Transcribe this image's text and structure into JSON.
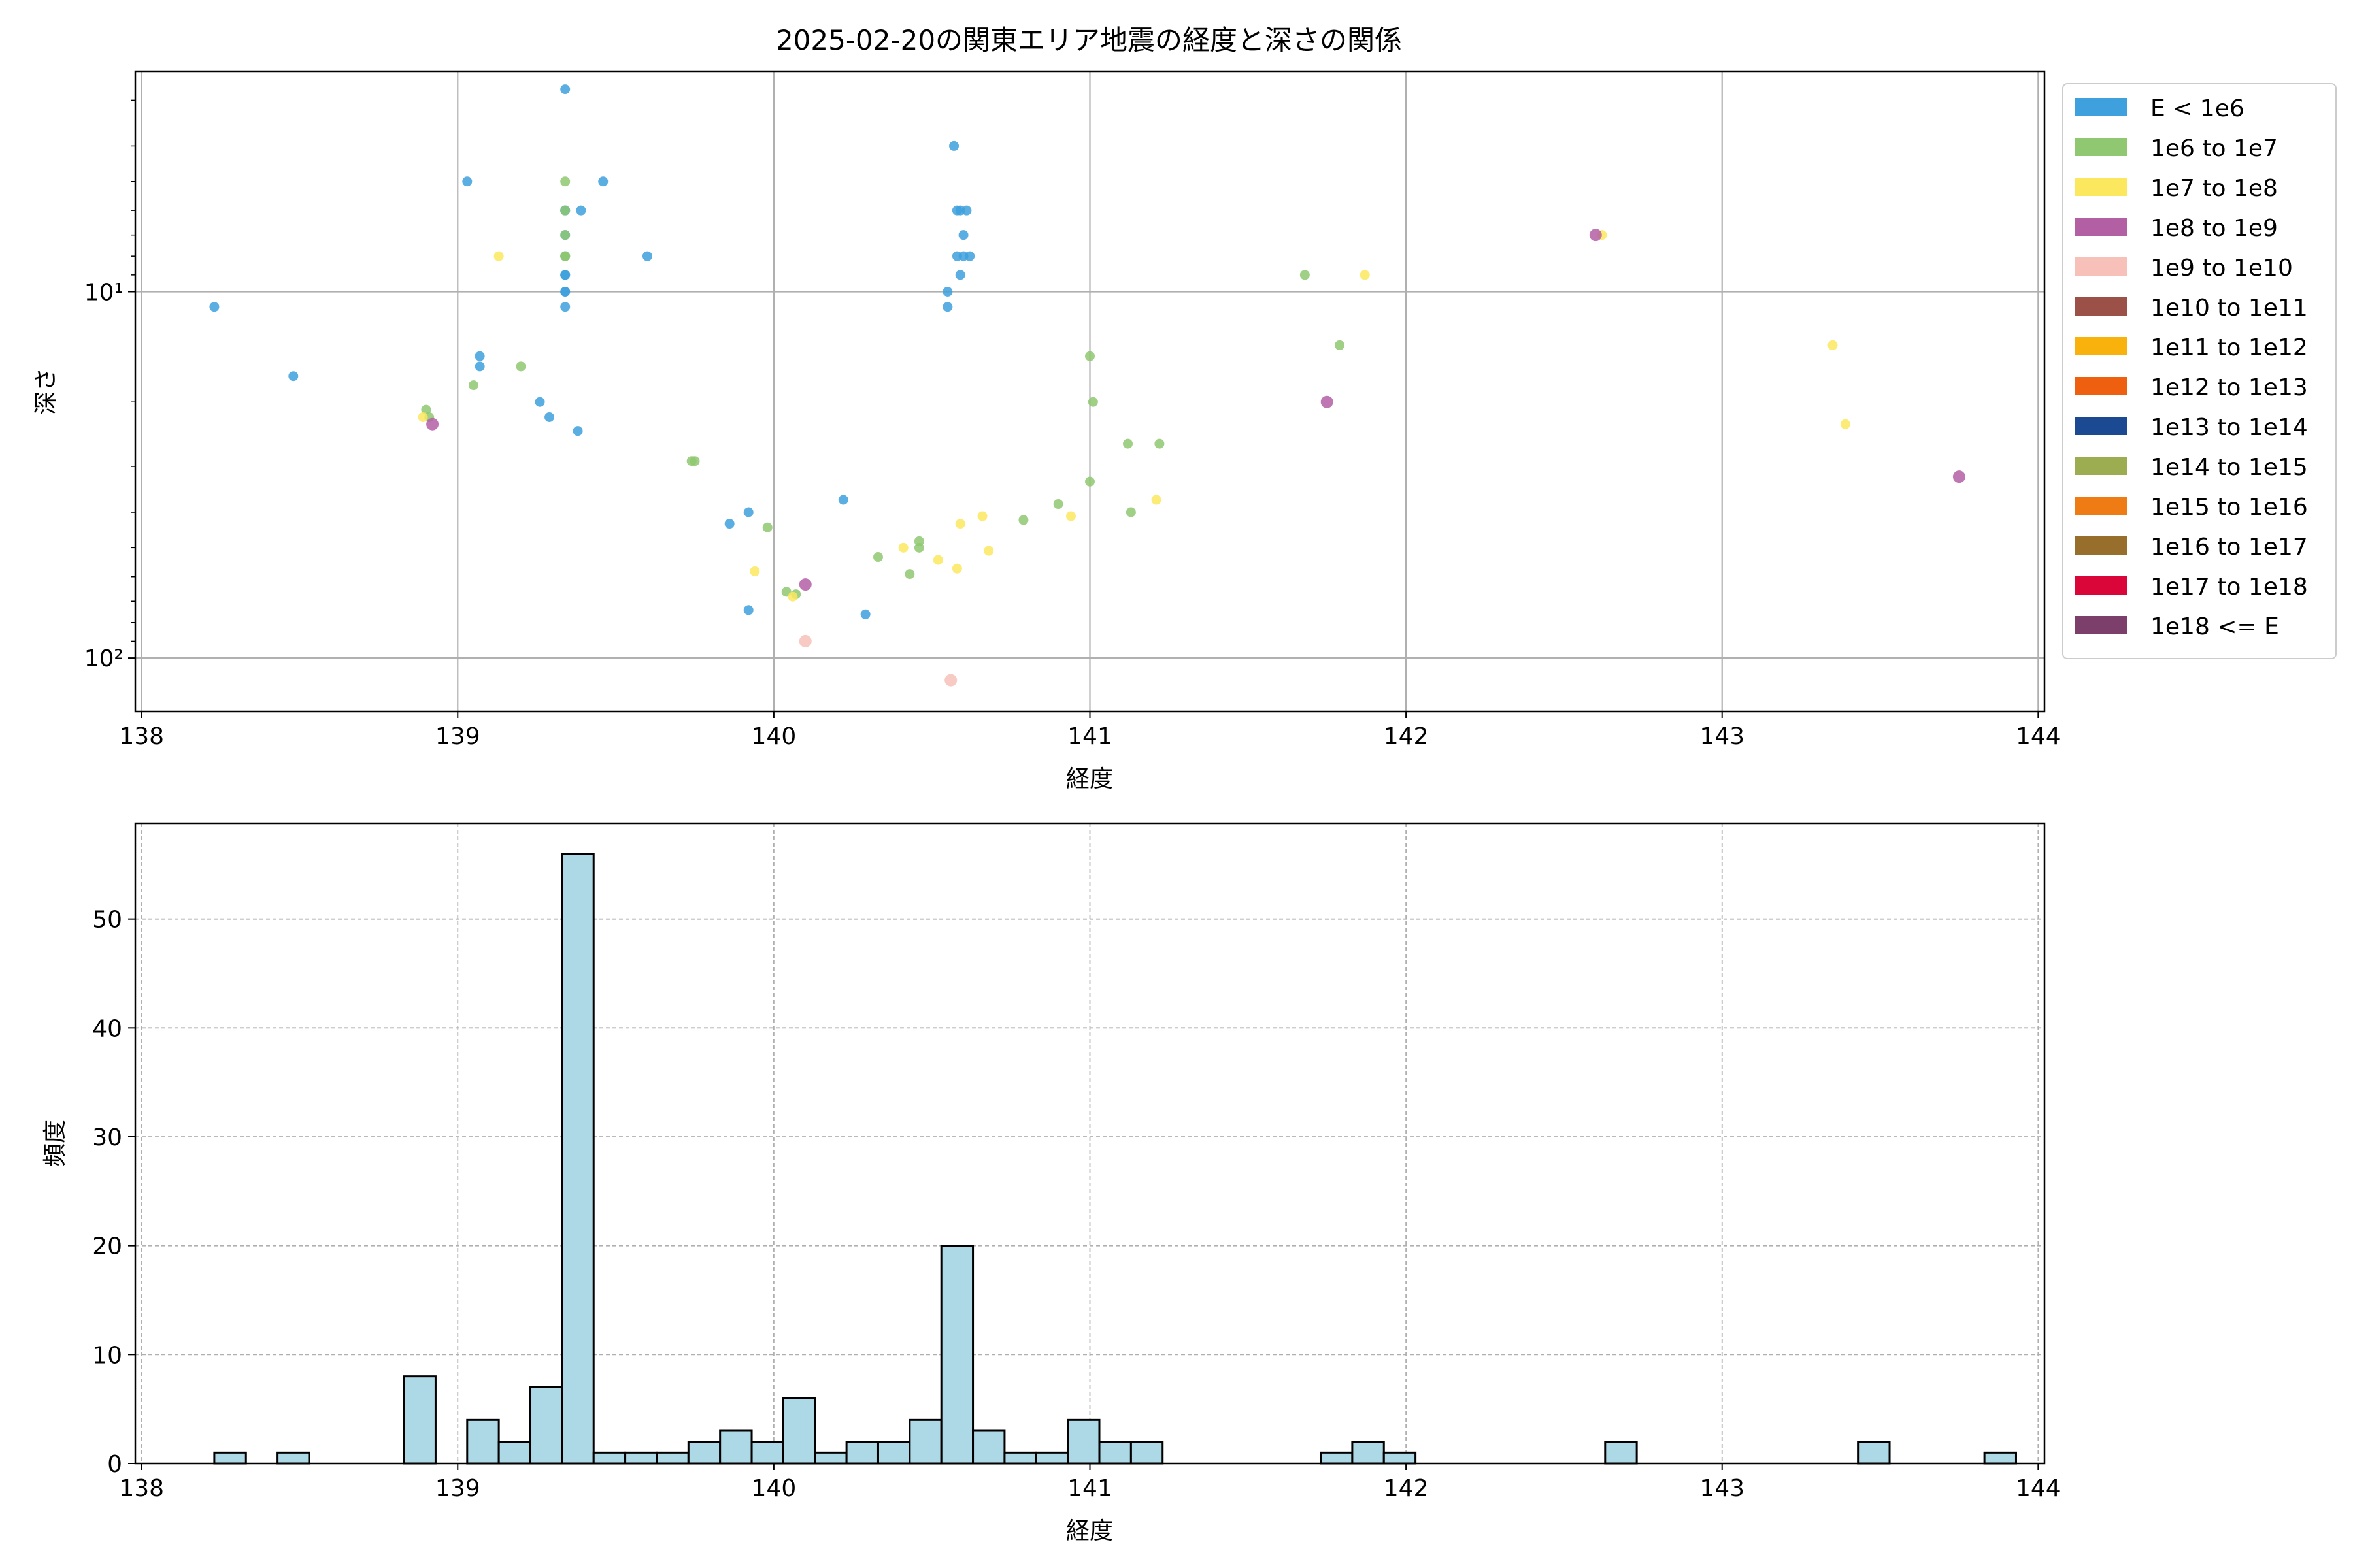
{
  "chart_data": [
    {
      "type": "scatter",
      "title": "2025-02-20の関東エリア地震の経度と深さの関係",
      "xlabel": "経度",
      "ylabel": "深さ",
      "xlim": [
        137.98,
        144.02
      ],
      "ylim": [
        140,
        2.5
      ],
      "yscale": "log",
      "y_inverted": true,
      "x_ticks": [
        138,
        139,
        140,
        141,
        142,
        143,
        144
      ],
      "y_ticks": [
        {
          "value": 10,
          "label": "10¹"
        },
        {
          "value": 100,
          "label": "10²"
        }
      ],
      "grid": true,
      "legend_position": "outside-right",
      "legend": [
        {
          "label": "E < 1e6",
          "color": "#3ea0dc"
        },
        {
          "label": "1e6 to 1e7",
          "color": "#8fc870"
        },
        {
          "label": "1e7 to 1e8",
          "color": "#fbe85e"
        },
        {
          "label": "1e8 to 1e9",
          "color": "#b35fa4"
        },
        {
          "label": "1e9 to 1e10",
          "color": "#f7c1ba"
        },
        {
          "label": "1e10 to 1e11",
          "color": "#9b5148"
        },
        {
          "label": "1e11 to 1e12",
          "color": "#f9b20b"
        },
        {
          "label": "1e12 to 1e13",
          "color": "#ee6010"
        },
        {
          "label": "1e13 to 1e14",
          "color": "#1c4a92"
        },
        {
          "label": "1e14 to 1e15",
          "color": "#9cac50"
        },
        {
          "label": "1e15 to 1e16",
          "color": "#ee7b14"
        },
        {
          "label": "1e16 to 1e17",
          "color": "#976e2b"
        },
        {
          "label": "1e17 to 1e18",
          "color": "#da0639"
        },
        {
          "label": "1e18 <= E",
          "color": "#7c3f6c"
        }
      ],
      "series": [
        {
          "class": 0,
          "points": [
            [
              138.23,
              11
            ],
            [
              138.48,
              17
            ],
            [
              139.03,
              5
            ],
            [
              139.07,
              15
            ],
            [
              139.07,
              16
            ],
            [
              139.26,
              20
            ],
            [
              139.29,
              22
            ],
            [
              139.34,
              2.8
            ],
            [
              139.34,
              6
            ],
            [
              139.34,
              6
            ],
            [
              139.34,
              7
            ],
            [
              139.34,
              8
            ],
            [
              139.34,
              9
            ],
            [
              139.34,
              9
            ],
            [
              139.34,
              10
            ],
            [
              139.34,
              10
            ],
            [
              139.34,
              11
            ],
            [
              139.38,
              24
            ],
            [
              139.39,
              6
            ],
            [
              139.46,
              5
            ],
            [
              139.6,
              8
            ],
            [
              139.86,
              43
            ],
            [
              139.92,
              40
            ],
            [
              139.92,
              74
            ],
            [
              140.22,
              37
            ],
            [
              140.29,
              76
            ],
            [
              140.55,
              10
            ],
            [
              140.55,
              11
            ],
            [
              140.57,
              4
            ],
            [
              140.58,
              6
            ],
            [
              140.58,
              8
            ],
            [
              140.59,
              6
            ],
            [
              140.59,
              9
            ],
            [
              140.6,
              7
            ],
            [
              140.6,
              8
            ],
            [
              140.61,
              6
            ],
            [
              140.62,
              8
            ]
          ]
        },
        {
          "class": 1,
          "points": [
            [
              138.9,
              21
            ],
            [
              138.91,
              22
            ],
            [
              139.05,
              18
            ],
            [
              139.2,
              16
            ],
            [
              139.34,
              5
            ],
            [
              139.34,
              6
            ],
            [
              139.34,
              7
            ],
            [
              139.34,
              8
            ],
            [
              139.34,
              8
            ],
            [
              139.74,
              29
            ],
            [
              139.75,
              29
            ],
            [
              139.98,
              44
            ],
            [
              140.04,
              66
            ],
            [
              140.07,
              67
            ],
            [
              140.33,
              53
            ],
            [
              140.43,
              59
            ],
            [
              140.46,
              48
            ],
            [
              140.46,
              50
            ],
            [
              140.79,
              42
            ],
            [
              140.9,
              38
            ],
            [
              141,
              33
            ],
            [
              141,
              15
            ],
            [
              141.01,
              20
            ],
            [
              141.12,
              26
            ],
            [
              141.13,
              40
            ],
            [
              141.22,
              26
            ],
            [
              141.68,
              9
            ],
            [
              141.79,
              14
            ]
          ]
        },
        {
          "class": 2,
          "points": [
            [
              138.89,
              22
            ],
            [
              139.13,
              8
            ],
            [
              139.94,
              58
            ],
            [
              140.06,
              68
            ],
            [
              140.41,
              50
            ],
            [
              140.52,
              54
            ],
            [
              140.58,
              57
            ],
            [
              140.59,
              43
            ],
            [
              140.66,
              41
            ],
            [
              140.68,
              51
            ],
            [
              140.94,
              41
            ],
            [
              141.21,
              37
            ],
            [
              141.87,
              9
            ],
            [
              142.62,
              7
            ],
            [
              143.35,
              14
            ],
            [
              143.39,
              23
            ]
          ]
        },
        {
          "class": 3,
          "points": [
            [
              138.92,
              23
            ],
            [
              140.1,
              63
            ],
            [
              141.75,
              20
            ],
            [
              142.6,
              7
            ],
            [
              143.75,
              32
            ]
          ]
        },
        {
          "class": 4,
          "points": [
            [
              140.1,
              90
            ],
            [
              140.56,
              115
            ]
          ]
        }
      ]
    },
    {
      "type": "bar",
      "subtype": "histogram",
      "xlabel": "経度",
      "ylabel": "頻度",
      "xlim": [
        137.98,
        144.02
      ],
      "ylim": [
        0,
        58.8
      ],
      "x_ticks": [
        138,
        139,
        140,
        141,
        142,
        143,
        144
      ],
      "y_ticks": [
        0,
        10,
        20,
        30,
        40,
        50
      ],
      "grid": true,
      "bar_color": "#add8e6",
      "edge_color": "#000000",
      "bin_start": 138.23,
      "bin_width": 0.1,
      "counts": [
        1,
        0,
        1,
        0,
        0,
        0,
        8,
        0,
        4,
        2,
        7,
        56,
        1,
        1,
        1,
        2,
        3,
        2,
        6,
        1,
        2,
        2,
        4,
        20,
        3,
        1,
        1,
        4,
        2,
        2,
        0,
        0,
        0,
        0,
        0,
        1,
        2,
        1,
        0,
        0,
        0,
        0,
        0,
        0,
        2,
        0,
        0,
        0,
        0,
        0,
        0,
        0,
        2,
        0,
        0,
        0,
        1
      ]
    }
  ]
}
